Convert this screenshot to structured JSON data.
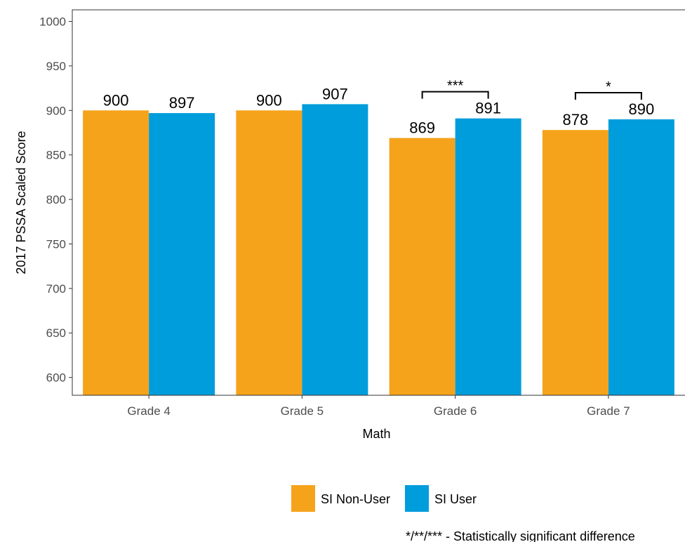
{
  "chart_data": {
    "type": "bar",
    "xlabel": "Math",
    "ylabel": "2017 PSSA Scaled Score",
    "ylim": [
      580,
      1013
    ],
    "yticks": [
      600,
      650,
      700,
      750,
      800,
      850,
      900,
      950,
      1000
    ],
    "categories": [
      "Grade 4",
      "Grade 5",
      "Grade 6",
      "Grade 7"
    ],
    "series": [
      {
        "name": "SI Non-User",
        "color": "#F5A31A",
        "values": [
          900,
          900,
          869,
          878
        ]
      },
      {
        "name": "SI User",
        "color": "#009DDC",
        "values": [
          897,
          907,
          891,
          890
        ]
      }
    ],
    "significance": [
      {
        "category": "Grade 6",
        "label": "***"
      },
      {
        "category": "Grade 7",
        "label": "*"
      }
    ],
    "legend_position": "bottom",
    "grid": false,
    "note": "*/**/*** - Statistically significant difference"
  }
}
